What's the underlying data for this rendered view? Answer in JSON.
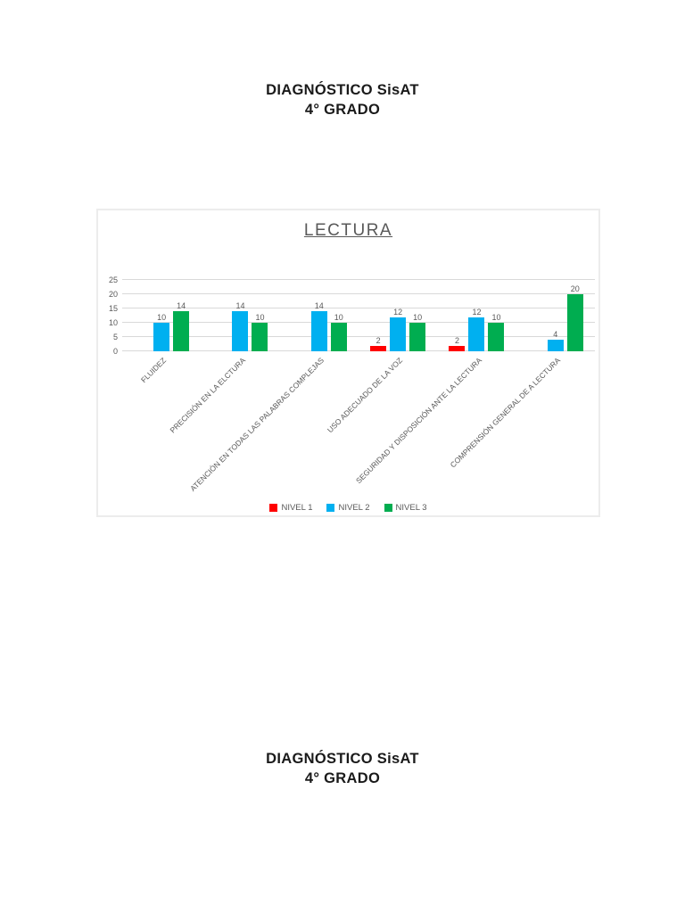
{
  "page": {
    "top_title": {
      "line1": "DIAGNÓSTICO SisAT",
      "line2": "4° GRADO"
    },
    "bottom_title": {
      "line1": "DIAGNÓSTICO SisAT",
      "line2": "4° GRADO"
    }
  },
  "chart_data": {
    "type": "bar",
    "title": "LECTURA",
    "categories": [
      "FLUIDEZ",
      "PRECISIÓN EN LA ELCTURA",
      "ATENCIÓN EN TODAS LAS PALABRAS COMPLEJAS",
      "USO ADECUADO DE LA VOZ",
      "SEGURIDAD Y DISPOSICIÓN ANTE LA LECTURA",
      "COMPRENSIÓN GENERAL DE A LECTURA"
    ],
    "series": [
      {
        "name": "NIVEL 1",
        "color": "#ff0000",
        "values": [
          0,
          0,
          0,
          2,
          2,
          0
        ]
      },
      {
        "name": "NIVEL 2",
        "color": "#00b0f0",
        "values": [
          10,
          14,
          14,
          12,
          12,
          4
        ]
      },
      {
        "name": "NIVEL 3",
        "color": "#00ad50",
        "values": [
          14,
          10,
          10,
          10,
          10,
          20
        ]
      }
    ],
    "y_ticks": [
      0,
      5,
      10,
      15,
      20,
      25
    ],
    "ylim": [
      0,
      25
    ],
    "grid": true,
    "data_labels": true,
    "legend_position": "bottom",
    "colors": {
      "axis_text": "#595959",
      "gridline": "#d9d9d9"
    }
  }
}
